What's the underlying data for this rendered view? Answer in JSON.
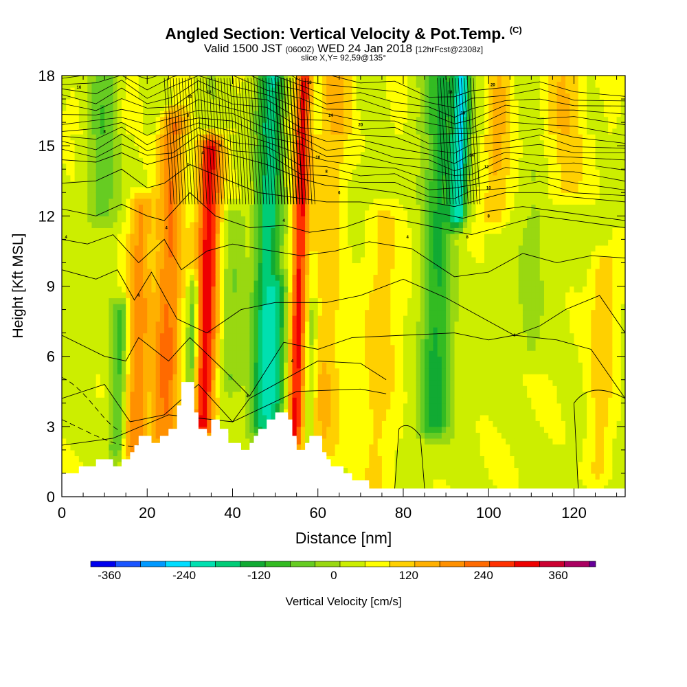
{
  "header": {
    "title": "Angled Section: Vertical Velocity & Pot.Temp.",
    "title_tag": "(C)",
    "subtitle_a": "Valid 1500 JST",
    "subtitle_b": "(0600Z)",
    "subtitle_c": "WED 24 Jan 2018",
    "subtitle_d": "[12hrFcst@2308z]",
    "slice": "slice X,Y= 92,59@135°"
  },
  "chart_data": {
    "type": "heatmap",
    "xlabel": "Distance [nm]",
    "ylabel": "Height [Kft MSL]",
    "xlim": [
      0,
      132
    ],
    "ylim": [
      0,
      18
    ],
    "xticks": [
      0,
      20,
      40,
      60,
      80,
      100,
      120
    ],
    "yticks": [
      0,
      3,
      6,
      9,
      12,
      15,
      18
    ],
    "colorbar": {
      "label": "Vertical Velocity [cm/s]",
      "tick_labels": [
        "-360",
        "-240",
        "-120",
        "0",
        "120",
        "240",
        "360"
      ],
      "tick_values": [
        -360,
        -240,
        -120,
        0,
        120,
        240,
        360
      ],
      "range": [
        -390,
        420
      ],
      "bin_width": 40,
      "colors": [
        "#0000ee",
        "#1a55ff",
        "#0099ff",
        "#00ddff",
        "#00e0b0",
        "#00cc77",
        "#11aa33",
        "#33bb22",
        "#66cc22",
        "#99d811",
        "#ccee00",
        "#ffff00",
        "#ffd000",
        "#ffb000",
        "#ff9000",
        "#ff6a00",
        "#ff3000",
        "#ee0000",
        "#cc0030",
        "#aa0060",
        "#660099"
      ]
    },
    "terrain_kft": [
      [
        0,
        1.0
      ],
      [
        4,
        1.0
      ],
      [
        4,
        1.3
      ],
      [
        8,
        1.3
      ],
      [
        8,
        1.6
      ],
      [
        12,
        1.6
      ],
      [
        12,
        1.3
      ],
      [
        14,
        1.3
      ],
      [
        14,
        1.6
      ],
      [
        16,
        1.6
      ],
      [
        16,
        1.9
      ],
      [
        17,
        1.9
      ],
      [
        17,
        2.2
      ],
      [
        18,
        2.2
      ],
      [
        18,
        2.6
      ],
      [
        21,
        2.6
      ],
      [
        21,
        2.3
      ],
      [
        23,
        2.3
      ],
      [
        23,
        2.6
      ],
      [
        25,
        2.6
      ],
      [
        25,
        2.9
      ],
      [
        27,
        2.9
      ],
      [
        27,
        3.9
      ],
      [
        28,
        3.9
      ],
      [
        28,
        4.9
      ],
      [
        31,
        4.9
      ],
      [
        31,
        3.6
      ],
      [
        32,
        3.6
      ],
      [
        32,
        2.9
      ],
      [
        34,
        2.9
      ],
      [
        34,
        2.6
      ],
      [
        35,
        2.6
      ],
      [
        35,
        3.3
      ],
      [
        37,
        3.3
      ],
      [
        37,
        2.9
      ],
      [
        39,
        2.9
      ],
      [
        39,
        2.3
      ],
      [
        42,
        2.3
      ],
      [
        42,
        2.0
      ],
      [
        44,
        2.0
      ],
      [
        44,
        2.3
      ],
      [
        45,
        2.3
      ],
      [
        45,
        2.6
      ],
      [
        46,
        2.6
      ],
      [
        46,
        2.9
      ],
      [
        48,
        2.9
      ],
      [
        48,
        3.3
      ],
      [
        50,
        3.3
      ],
      [
        50,
        3.6
      ],
      [
        53,
        3.6
      ],
      [
        53,
        3.3
      ],
      [
        54,
        3.3
      ],
      [
        54,
        2.6
      ],
      [
        55,
        2.6
      ],
      [
        55,
        2.0
      ],
      [
        57,
        2.0
      ],
      [
        57,
        2.3
      ],
      [
        58,
        2.3
      ],
      [
        58,
        2.6
      ],
      [
        61,
        2.6
      ],
      [
        61,
        1.9
      ],
      [
        62,
        1.9
      ],
      [
        62,
        1.6
      ],
      [
        63,
        1.6
      ],
      [
        63,
        1.3
      ],
      [
        66,
        1.3
      ],
      [
        66,
        1.0
      ],
      [
        68,
        1.0
      ],
      [
        68,
        0.7
      ],
      [
        72,
        0.7
      ],
      [
        72,
        0.35
      ],
      [
        132,
        0.35
      ]
    ],
    "updrafts": [
      {
        "x": 18,
        "w": 3.0,
        "amp": 150,
        "y0": 2.0,
        "y1": 12.5
      },
      {
        "x": 25,
        "w": 3.2,
        "amp": 175,
        "y0": 2.5,
        "y1": 16.0
      },
      {
        "x": 34,
        "w": 2.8,
        "amp": 270,
        "y0": 3.0,
        "y1": 15.0
      },
      {
        "x": 55.5,
        "w": 1.8,
        "amp": 260,
        "y0": 2.5,
        "y1": 18.0
      },
      {
        "x": 62,
        "w": 4.0,
        "amp": 85,
        "y0": 2.0,
        "y1": 18.0
      },
      {
        "x": 75,
        "w": 4.5,
        "amp": 65,
        "y0": 0.3,
        "y1": 12.0
      },
      {
        "x": 101,
        "w": 3.0,
        "amp": 85,
        "y0": 12.0,
        "y1": 18.0
      },
      {
        "x": 118,
        "w": 5.0,
        "amp": 70,
        "y0": 13.0,
        "y1": 18.0
      },
      {
        "x": 127,
        "w": 3.0,
        "amp": 75,
        "y0": 1.0,
        "y1": 10.0
      }
    ],
    "downdrafts": [
      {
        "x": 14,
        "w": 2.0,
        "amp": -140,
        "y0": 2.0,
        "y1": 8.0
      },
      {
        "x": 31,
        "w": 1.4,
        "amp": -160,
        "y0": 4.0,
        "y1": 9.0
      },
      {
        "x": 48,
        "w": 3.0,
        "amp": -220,
        "y0": 3.0,
        "y1": 18.0
      },
      {
        "x": 51,
        "w": 2.0,
        "amp": -120,
        "y0": 2.5,
        "y1": 9.0
      },
      {
        "x": 59,
        "w": 1.2,
        "amp": -90,
        "y0": 2.5,
        "y1": 8.0
      },
      {
        "x": 88,
        "w": 3.5,
        "amp": -160,
        "y0": 3.0,
        "y1": 18.0
      },
      {
        "x": 92.5,
        "w": 2.0,
        "amp": -250,
        "y0": 12.0,
        "y1": 18.0
      },
      {
        "x": 9,
        "w": 4.0,
        "amp": -90,
        "y0": 12.0,
        "y1": 18.0
      },
      {
        "x": 40,
        "w": 3.0,
        "amp": -70,
        "y0": 5.0,
        "y1": 12.0
      },
      {
        "x": 110,
        "w": 3.0,
        "amp": -40,
        "y0": 6.0,
        "y1": 14.0
      }
    ],
    "theta_isentropes_kft": [
      [
        [
          0,
          2.2
        ],
        [
          12,
          2.5
        ],
        [
          25,
          3.5
        ],
        [
          40,
          3.2
        ],
        [
          55,
          4.5
        ],
        [
          70,
          4.6
        ],
        [
          76,
          4.4
        ]
      ],
      [
        [
          0,
          4.2
        ],
        [
          10,
          4.8
        ],
        [
          16,
          3.2
        ],
        [
          24,
          3.5
        ],
        [
          32,
          4.8
        ],
        [
          40,
          3.2
        ],
        [
          44,
          4.2
        ],
        [
          52,
          5.0
        ],
        [
          60,
          5.8
        ],
        [
          70,
          5.7
        ],
        [
          76,
          5.0
        ]
      ],
      [
        [
          0,
          6.9
        ],
        [
          10,
          6.0
        ],
        [
          15,
          5.8
        ],
        [
          18,
          6.8
        ],
        [
          25,
          5.8
        ],
        [
          30,
          6.8
        ],
        [
          38,
          5.4
        ],
        [
          44,
          4.3
        ],
        [
          52,
          6.6
        ],
        [
          60,
          6.3
        ],
        [
          68,
          6.8
        ],
        [
          80,
          6.9
        ],
        [
          92,
          7.0
        ],
        [
          100,
          6.7
        ],
        [
          106,
          6.9
        ],
        [
          116,
          6.7
        ],
        [
          124,
          6.3
        ],
        [
          132,
          4.2
        ]
      ],
      [
        [
          0,
          9.7
        ],
        [
          8,
          9.3
        ],
        [
          13,
          9.7
        ],
        [
          17,
          8.4
        ],
        [
          21,
          9.6
        ],
        [
          27,
          7.6
        ],
        [
          34,
          7.0
        ],
        [
          42,
          8.0
        ],
        [
          50,
          8.3
        ],
        [
          62,
          8.3
        ],
        [
          70,
          8.6
        ],
        [
          80,
          9.3
        ],
        [
          90,
          8.5
        ],
        [
          100,
          7.5
        ],
        [
          106,
          6.9
        ],
        [
          112,
          7.3
        ],
        [
          118,
          8.0
        ],
        [
          126,
          8.6
        ],
        [
          132,
          7.0
        ]
      ],
      [
        [
          0,
          11.0
        ],
        [
          6,
          10.8
        ],
        [
          12,
          11.2
        ],
        [
          18,
          10.0
        ],
        [
          24,
          11.0
        ],
        [
          28,
          9.7
        ],
        [
          34,
          10.5
        ],
        [
          40,
          10.8
        ],
        [
          46,
          10.6
        ],
        [
          56,
          10.3
        ],
        [
          64,
          10.5
        ],
        [
          72,
          10.9
        ],
        [
          82,
          10.6
        ],
        [
          92,
          9.4
        ],
        [
          100,
          9.6
        ],
        [
          108,
          10.4
        ],
        [
          116,
          10.0
        ],
        [
          124,
          10.3
        ],
        [
          132,
          10.2
        ]
      ],
      [
        [
          0,
          12.3
        ],
        [
          8,
          12.0
        ],
        [
          14,
          12.5
        ],
        [
          20,
          12.0
        ],
        [
          24,
          11.8
        ],
        [
          30,
          13.0
        ],
        [
          36,
          12.0
        ],
        [
          44,
          11.5
        ],
        [
          52,
          11.6
        ],
        [
          58,
          11.3
        ],
        [
          66,
          11.5
        ],
        [
          74,
          12.0
        ],
        [
          80,
          11.8
        ],
        [
          88,
          11.5
        ],
        [
          96,
          11.2
        ],
        [
          104,
          11.6
        ],
        [
          112,
          12.0
        ],
        [
          120,
          11.8
        ],
        [
          132,
          11.5
        ]
      ],
      [
        [
          0,
          13.4
        ],
        [
          8,
          13.5
        ],
        [
          14,
          14.0
        ],
        [
          20,
          13.2
        ],
        [
          24,
          13.4
        ],
        [
          30,
          14.2
        ],
        [
          38,
          13.6
        ],
        [
          46,
          13.0
        ],
        [
          54,
          12.8
        ],
        [
          62,
          12.6
        ],
        [
          70,
          12.6
        ],
        [
          78,
          12.4
        ],
        [
          86,
          12.2
        ],
        [
          94,
          11.9
        ],
        [
          100,
          12.2
        ],
        [
          108,
          12.4
        ],
        [
          116,
          12.2
        ],
        [
          124,
          12.0
        ],
        [
          132,
          11.8
        ]
      ],
      [
        [
          0,
          14.4
        ],
        [
          8,
          14.3
        ],
        [
          14,
          14.7
        ],
        [
          20,
          14.2
        ],
        [
          26,
          14.5
        ],
        [
          32,
          15.0
        ],
        [
          40,
          14.6
        ],
        [
          48,
          14.2
        ],
        [
          56,
          13.6
        ],
        [
          62,
          13.3
        ],
        [
          70,
          13.2
        ],
        [
          78,
          13.0
        ],
        [
          86,
          12.6
        ],
        [
          92,
          12.4
        ],
        [
          96,
          12.6
        ],
        [
          104,
          13.0
        ],
        [
          112,
          13.0
        ],
        [
          120,
          12.8
        ],
        [
          132,
          12.6
        ]
      ]
    ],
    "contour_labels": [
      {
        "x": 1,
        "y": 11.1,
        "text": "4"
      },
      {
        "x": 18,
        "y": 8.6,
        "text": "4"
      },
      {
        "x": 24.5,
        "y": 11.5,
        "text": "4"
      },
      {
        "x": 10,
        "y": 15.6,
        "text": "8"
      },
      {
        "x": 43.5,
        "y": 4.3,
        "text": "4"
      },
      {
        "x": 54,
        "y": 5.8,
        "text": "4"
      },
      {
        "x": 52,
        "y": 11.8,
        "text": "4"
      },
      {
        "x": 81,
        "y": 11.1,
        "text": "4"
      },
      {
        "x": 95,
        "y": 11.1,
        "text": "8"
      },
      {
        "x": 106,
        "y": 6.9,
        "text": "4"
      },
      {
        "x": 100,
        "y": 12.0,
        "text": "8"
      },
      {
        "x": 100,
        "y": 13.2,
        "text": "10"
      },
      {
        "x": 99.5,
        "y": 14.1,
        "text": "12"
      },
      {
        "x": 96,
        "y": 14.6,
        "text": "14"
      },
      {
        "x": 94,
        "y": 16.4,
        "text": "16"
      },
      {
        "x": 91,
        "y": 17.3,
        "text": "18"
      },
      {
        "x": 101,
        "y": 17.6,
        "text": "20"
      },
      {
        "x": 4,
        "y": 17.5,
        "text": "16"
      },
      {
        "x": 30,
        "y": 17.1,
        "text": "20"
      },
      {
        "x": 29.5,
        "y": 16.3,
        "text": "8"
      },
      {
        "x": 37,
        "y": 15.0,
        "text": "4"
      },
      {
        "x": 33,
        "y": 14.7,
        "text": "4"
      },
      {
        "x": 34.5,
        "y": 17.3,
        "text": "18"
      },
      {
        "x": 58,
        "y": 17.7,
        "text": "18"
      },
      {
        "x": 63,
        "y": 16.3,
        "text": "14"
      },
      {
        "x": 70,
        "y": 15.9,
        "text": "20"
      },
      {
        "x": 60,
        "y": 14.5,
        "text": "10"
      },
      {
        "x": 62,
        "y": 13.9,
        "text": "8"
      },
      {
        "x": 65,
        "y": 13.0,
        "text": "6"
      },
      {
        "x": 29.5,
        "y": 14.2,
        "text": "4"
      }
    ]
  }
}
